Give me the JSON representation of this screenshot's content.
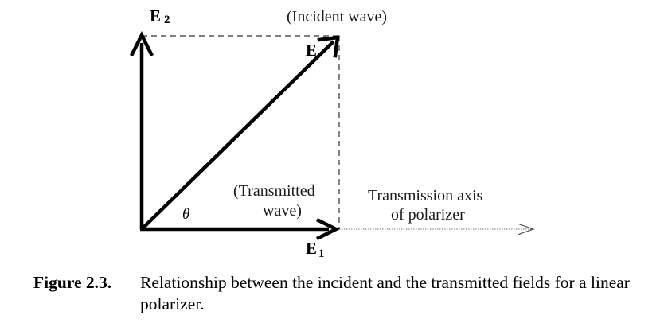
{
  "labels": {
    "e2_main": "E",
    "e2_sub": "2",
    "incident_wave": "(Incident wave)",
    "e_label": "E",
    "transmitted_line1": "(Transmitted",
    "transmitted_line2": "wave)",
    "theta": "θ",
    "e1_main": "E",
    "e1_sub": "1",
    "axis_line1": "Transmission axis",
    "axis_line2": "of polarizer"
  },
  "caption": {
    "label": "Figure 2.3.",
    "text": "Relationship between the incident and the transmitted fields for a linear polarizer."
  }
}
